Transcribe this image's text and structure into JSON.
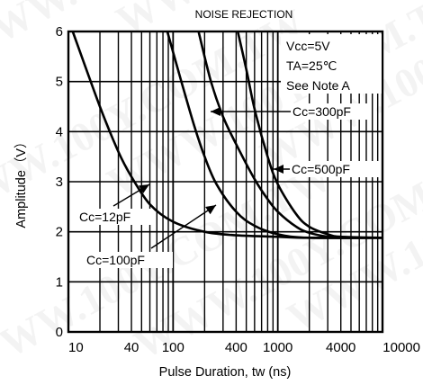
{
  "chart_data": {
    "type": "line",
    "title": "NOISE REJECTION",
    "xlabel": "Pulse Duration, tw (ns)",
    "ylabel": "Amplitude（V）",
    "x_scale": "log",
    "xlim": [
      10,
      10000
    ],
    "ylim": [
      0,
      6
    ],
    "x_tick_labels": [
      "10",
      "40",
      "100",
      "400",
      "1000",
      "4000",
      "10000"
    ],
    "x_ticks": [
      10,
      40,
      100,
      400,
      1000,
      4000,
      10000
    ],
    "y_ticks": [
      0,
      1,
      2,
      3,
      4,
      5,
      6
    ],
    "grid": true,
    "conditions": [
      "Vcc=5V",
      "TA=25℃",
      "See Note A"
    ],
    "series": [
      {
        "name": "Cc=12pF",
        "x": [
          11,
          20,
          30,
          40,
          60,
          100,
          200,
          400,
          1000,
          2000,
          10000
        ],
        "y": [
          6.0,
          4.5,
          3.6,
          3.1,
          2.55,
          2.2,
          2.0,
          1.93,
          1.9,
          1.88,
          1.88
        ]
      },
      {
        "name": "Cc=100pF",
        "x": [
          88,
          120,
          160,
          200,
          260,
          400,
          600,
          1000,
          2000,
          10000
        ],
        "y": [
          6.0,
          5.0,
          4.1,
          3.5,
          2.95,
          2.4,
          2.12,
          1.95,
          1.88,
          1.88
        ]
      },
      {
        "name": "Cc=300pF",
        "x": [
          175,
          230,
          300,
          400,
          600,
          800,
          1000,
          1500,
          2000,
          3000,
          4000,
          10000
        ],
        "y": [
          6.0,
          5.0,
          4.3,
          3.75,
          3.05,
          2.65,
          2.4,
          2.1,
          1.98,
          1.9,
          1.88,
          1.88
        ]
      },
      {
        "name": "Cc=500pF",
        "x": [
          415,
          500,
          600,
          800,
          1000,
          1500,
          2000,
          3000,
          4000,
          10000
        ],
        "y": [
          6.0,
          5.25,
          4.45,
          3.5,
          2.95,
          2.35,
          2.1,
          1.95,
          1.9,
          1.88
        ]
      }
    ],
    "annotations": [
      "Cc=12pF",
      "Cc=100pF",
      "Cc=300pF",
      "Cc=500pF"
    ],
    "watermark": "WWW.100Y.COM.TW"
  }
}
